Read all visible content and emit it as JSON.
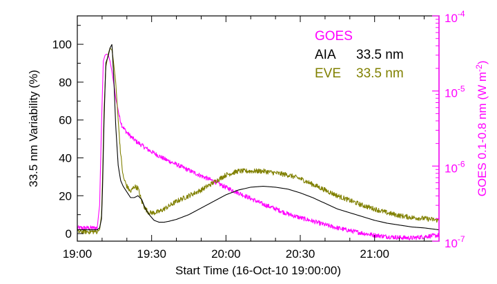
{
  "chart_data": {
    "type": "line",
    "title": "",
    "xlabel": "Start Time (16-Oct-10 19:00:00)",
    "ylabel_left": "33.5 nm Variability (%)",
    "ylabel_right": {
      "prefix": "GOES 0.1-0.8 nm (W m",
      "sup": "-2",
      "suffix": ")"
    },
    "xlim_minutes": [
      0,
      146
    ],
    "ylim_left": [
      -4,
      115
    ],
    "ylim_right": [
      1e-07,
      0.0001
    ],
    "right_scale": "log",
    "x_ticks": [
      {
        "minute": 0,
        "label": "19:00"
      },
      {
        "minute": 30,
        "label": "19:30"
      },
      {
        "minute": 60,
        "label": "20:00"
      },
      {
        "minute": 90,
        "label": "20:30"
      },
      {
        "minute": 120,
        "label": "21:00"
      }
    ],
    "y_ticks_left": [
      {
        "value": 0,
        "label": "0"
      },
      {
        "value": 20,
        "label": "20"
      },
      {
        "value": 40,
        "label": "40"
      },
      {
        "value": 60,
        "label": "60"
      },
      {
        "value": 80,
        "label": "80"
      },
      {
        "value": 100,
        "label": "100"
      }
    ],
    "y_ticks_right": [
      {
        "value": 1e-07,
        "base": "10",
        "exp": "-7"
      },
      {
        "value": 1e-06,
        "base": "10",
        "exp": "-6"
      },
      {
        "value": 1e-05,
        "base": "10",
        "exp": "-5"
      },
      {
        "value": 0.0001,
        "base": "10",
        "exp": "-4"
      }
    ],
    "legend": {
      "placement": "top-right",
      "entries": [
        {
          "name": "GOES",
          "detail": "",
          "color": "#ff00ff"
        },
        {
          "name": "AIA",
          "detail": "33.5 nm",
          "color": "#000000"
        },
        {
          "name": "EVE",
          "detail": "33.5 nm",
          "color": "#808000"
        }
      ]
    },
    "series": [
      {
        "name": "AIA 33.5 nm",
        "color": "#000000",
        "axis": "left",
        "noise": 0,
        "x": [
          0,
          8,
          9,
          9.8,
          10.2,
          10.8,
          11.5,
          12.5,
          13.2,
          14.0,
          14.8,
          15.5,
          16.5,
          17.5,
          18.5,
          20,
          21.5,
          23,
          24.5,
          26,
          27.5,
          29,
          31,
          33,
          35,
          37,
          40,
          45,
          50,
          55,
          60,
          65,
          70,
          75,
          80,
          85,
          90,
          95,
          100,
          105,
          110,
          115,
          120,
          125,
          130,
          135,
          140,
          146
        ],
        "y": [
          2,
          2,
          3,
          8,
          25,
          60,
          90,
          94,
          98,
          100,
          80,
          57,
          36,
          28,
          25,
          22,
          19,
          19,
          20,
          18,
          13,
          10,
          7,
          6,
          6,
          6.5,
          7.5,
          10,
          13.5,
          17,
          20.5,
          23,
          24.5,
          25,
          24.5,
          23.5,
          21.5,
          19,
          16,
          13,
          11,
          9,
          7,
          5.5,
          4.5,
          3.5,
          3,
          2
        ]
      },
      {
        "name": "EVE 33.5 nm",
        "color": "#808000",
        "axis": "left",
        "noise": 1.3,
        "x": [
          0,
          8,
          9,
          9.8,
          10.2,
          10.8,
          11.5,
          12.5,
          13.2,
          14.0,
          14.5,
          15.5,
          16.5,
          17.5,
          18.5,
          20,
          21.5,
          23,
          24.5,
          26,
          27.5,
          29,
          31,
          33,
          35,
          37,
          40,
          45,
          50,
          55,
          60,
          65,
          70,
          75,
          80,
          85,
          90,
          95,
          100,
          105,
          110,
          115,
          120,
          125,
          130,
          135,
          140,
          146
        ],
        "y": [
          1,
          1,
          2,
          10,
          30,
          65,
          88,
          95,
          98,
          97,
          92,
          80,
          60,
          42,
          30,
          25,
          22,
          25,
          24,
          17,
          13,
          11,
          11,
          11.5,
          13,
          14.5,
          17,
          20,
          23,
          27,
          31,
          33,
          33,
          33,
          32,
          31,
          29,
          26,
          23,
          20,
          17.5,
          15,
          13,
          11,
          9.5,
          8.5,
          8,
          7
        ]
      },
      {
        "name": "GOES",
        "color": "#ff00ff",
        "axis": "right",
        "noise": 0.03,
        "x": [
          0,
          8,
          9,
          9.8,
          10.5,
          11.2,
          11.8,
          12.5,
          13.2,
          14,
          14.8,
          15.5,
          16.3,
          17,
          18,
          19,
          20,
          22,
          24,
          26,
          28,
          30,
          35,
          40,
          45,
          50,
          55,
          60,
          65,
          70,
          75,
          80,
          85,
          90,
          95,
          100,
          105,
          110,
          115,
          120,
          125,
          130,
          135,
          140,
          146
        ],
        "y": [
          1.5e-07,
          1.5e-07,
          3e-07,
          4e-06,
          2.5e-05,
          3e-05,
          3.1e-05,
          3e-05,
          2.5e-05,
          1.8e-05,
          1.2e-05,
          8e-06,
          6e-06,
          4.5e-06,
          3.5e-06,
          3.1e-06,
          2.8e-06,
          2.4e-06,
          2.1e-06,
          1.9e-06,
          1.7e-06,
          1.55e-06,
          1.25e-06,
          1.05e-06,
          8.8e-07,
          7.4e-07,
          6.3e-07,
          5.2e-07,
          4.4e-07,
          3.7e-07,
          3.1e-07,
          2.7e-07,
          2.3e-07,
          2.05e-07,
          1.85e-07,
          1.65e-07,
          1.5e-07,
          1.38e-07,
          1.28e-07,
          1.2e-07,
          1.15e-07,
          1.12e-07,
          1.1e-07,
          1.15e-07,
          1.2e-07
        ]
      }
    ]
  }
}
